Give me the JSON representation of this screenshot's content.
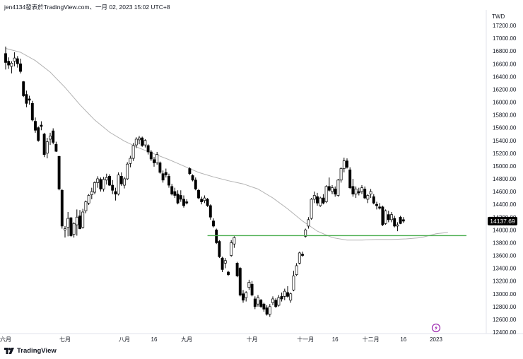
{
  "header": {
    "text": "jen4134發表於TradingView.com、一月 02, 2023 15:02 UTC+8"
  },
  "brand": {
    "name": "TradingView"
  },
  "colors": {
    "up_fill": "#ffffff",
    "down_fill": "#000000",
    "candle_border": "#000000",
    "moving_average": "#b2b2b2",
    "support_line": "#4caf50",
    "price_tag": "#000000",
    "event_marker": "#9c27b0"
  },
  "icons": {
    "logo": "tradingview-logo-icon",
    "event": "lightning-event-icon"
  },
  "chart_data": {
    "type": "candlestick",
    "currency_label": "TWD",
    "ylim": [
      12200,
      17350
    ],
    "y_ticks": [
      12400,
      12600,
      12800,
      13000,
      13200,
      13400,
      13600,
      13800,
      14000,
      14200,
      14400,
      14600,
      14800,
      15000,
      15200,
      15400,
      15600,
      15800,
      16000,
      16200,
      16400,
      16600,
      16800,
      17000,
      17200
    ],
    "x_ticks": [
      {
        "label": "六月",
        "bar": 0
      },
      {
        "label": "七月",
        "bar": 20
      },
      {
        "label": "八月",
        "bar": 40
      },
      {
        "label": "16",
        "bar": 50
      },
      {
        "label": "九月",
        "bar": 61
      },
      {
        "label": "十月",
        "bar": 83
      },
      {
        "label": "十一月",
        "bar": 101
      },
      {
        "label": "16",
        "bar": 111
      },
      {
        "label": "十二月",
        "bar": 123
      },
      {
        "label": "16",
        "bar": 134
      },
      {
        "label": "2023",
        "bar": 145
      }
    ],
    "last_price_label": "14137.69",
    "support_level": 13910,
    "support_from_bar": 68,
    "candles": [
      {
        "o": 16760,
        "h": 16870,
        "l": 16510,
        "c": 16620
      },
      {
        "o": 16640,
        "h": 16700,
        "l": 16520,
        "c": 16580
      },
      {
        "o": 16560,
        "h": 16640,
        "l": 16450,
        "c": 16610
      },
      {
        "o": 16640,
        "h": 16780,
        "l": 16560,
        "c": 16690
      },
      {
        "o": 16680,
        "h": 16720,
        "l": 16540,
        "c": 16600
      },
      {
        "o": 16600,
        "h": 16680,
        "l": 16450,
        "c": 16480
      },
      {
        "o": 16320,
        "h": 16330,
        "l": 16080,
        "c": 16100
      },
      {
        "o": 16120,
        "h": 16180,
        "l": 15920,
        "c": 15980
      },
      {
        "o": 16050,
        "h": 16100,
        "l": 15960,
        "c": 16030
      },
      {
        "o": 15980,
        "h": 16020,
        "l": 15700,
        "c": 15720
      },
      {
        "o": 15700,
        "h": 15760,
        "l": 15520,
        "c": 15560
      },
      {
        "o": 15600,
        "h": 15620,
        "l": 15380,
        "c": 15400
      },
      {
        "o": 15640,
        "h": 15700,
        "l": 15560,
        "c": 15620
      },
      {
        "o": 15500,
        "h": 15520,
        "l": 15140,
        "c": 15180
      },
      {
        "o": 15200,
        "h": 15440,
        "l": 15120,
        "c": 15380
      },
      {
        "o": 15420,
        "h": 15520,
        "l": 15330,
        "c": 15470
      },
      {
        "o": 15550,
        "h": 15590,
        "l": 15340,
        "c": 15370
      },
      {
        "o": 15340,
        "h": 15380,
        "l": 15220,
        "c": 15230
      },
      {
        "o": 15150,
        "h": 15160,
        "l": 14620,
        "c": 14640
      },
      {
        "o": 14620,
        "h": 14640,
        "l": 14020,
        "c": 14060
      },
      {
        "o": 14000,
        "h": 14060,
        "l": 13880,
        "c": 14020
      },
      {
        "o": 14040,
        "h": 14280,
        "l": 13900,
        "c": 14180
      },
      {
        "o": 14190,
        "h": 14200,
        "l": 13890,
        "c": 13910
      },
      {
        "o": 13930,
        "h": 14120,
        "l": 13880,
        "c": 14100
      },
      {
        "o": 14080,
        "h": 14320,
        "l": 13910,
        "c": 14200
      },
      {
        "o": 14220,
        "h": 14310,
        "l": 14010,
        "c": 14020
      },
      {
        "o": 14040,
        "h": 14330,
        "l": 14020,
        "c": 14280
      },
      {
        "o": 14300,
        "h": 14460,
        "l": 14260,
        "c": 14440
      },
      {
        "o": 14420,
        "h": 14560,
        "l": 14390,
        "c": 14540
      },
      {
        "o": 14550,
        "h": 14660,
        "l": 14480,
        "c": 14600
      },
      {
        "o": 14590,
        "h": 14760,
        "l": 14560,
        "c": 14740
      },
      {
        "o": 14740,
        "h": 14840,
        "l": 14660,
        "c": 14800
      },
      {
        "o": 14790,
        "h": 14820,
        "l": 14600,
        "c": 14640
      },
      {
        "o": 14640,
        "h": 14830,
        "l": 14600,
        "c": 14790
      },
      {
        "o": 14780,
        "h": 14880,
        "l": 14710,
        "c": 14820
      },
      {
        "o": 14840,
        "h": 14870,
        "l": 14690,
        "c": 14700
      },
      {
        "o": 14700,
        "h": 14780,
        "l": 14560,
        "c": 14620
      },
      {
        "o": 14600,
        "h": 14660,
        "l": 14460,
        "c": 14560
      },
      {
        "o": 14560,
        "h": 14900,
        "l": 14540,
        "c": 14860
      },
      {
        "o": 14840,
        "h": 14900,
        "l": 14690,
        "c": 14720
      },
      {
        "o": 14700,
        "h": 14830,
        "l": 14650,
        "c": 14800
      },
      {
        "o": 14800,
        "h": 15060,
        "l": 14780,
        "c": 15030
      },
      {
        "o": 15040,
        "h": 15160,
        "l": 14980,
        "c": 15120
      },
      {
        "o": 15120,
        "h": 15360,
        "l": 15080,
        "c": 15320
      },
      {
        "o": 15330,
        "h": 15450,
        "l": 15280,
        "c": 15420
      },
      {
        "o": 15410,
        "h": 15470,
        "l": 15340,
        "c": 15440
      },
      {
        "o": 15440,
        "h": 15460,
        "l": 15300,
        "c": 15320
      },
      {
        "o": 15330,
        "h": 15420,
        "l": 15290,
        "c": 15400
      },
      {
        "o": 15320,
        "h": 15340,
        "l": 15180,
        "c": 15220
      },
      {
        "o": 15220,
        "h": 15250,
        "l": 15080,
        "c": 15110
      },
      {
        "o": 15100,
        "h": 15140,
        "l": 14990,
        "c": 15050
      },
      {
        "o": 15050,
        "h": 15220,
        "l": 15020,
        "c": 15180
      },
      {
        "o": 15050,
        "h": 15070,
        "l": 14880,
        "c": 14900
      },
      {
        "o": 14880,
        "h": 14930,
        "l": 14740,
        "c": 14780
      },
      {
        "o": 14900,
        "h": 14960,
        "l": 14820,
        "c": 14860
      },
      {
        "o": 14840,
        "h": 14880,
        "l": 14660,
        "c": 14700
      },
      {
        "o": 14680,
        "h": 14720,
        "l": 14540,
        "c": 14560
      },
      {
        "o": 14600,
        "h": 14660,
        "l": 14500,
        "c": 14540
      },
      {
        "o": 14560,
        "h": 14620,
        "l": 14400,
        "c": 14420
      },
      {
        "o": 14540,
        "h": 14620,
        "l": 14440,
        "c": 14480
      },
      {
        "o": 14480,
        "h": 14540,
        "l": 14350,
        "c": 14380
      },
      {
        "o": 14440,
        "h": 14480,
        "l": 14400,
        "c": 14420
      },
      {
        "o": 14960,
        "h": 14980,
        "l": 14860,
        "c": 14880
      },
      {
        "o": 14850,
        "h": 14870,
        "l": 14760,
        "c": 14780
      },
      {
        "o": 14780,
        "h": 14820,
        "l": 14620,
        "c": 14640
      },
      {
        "o": 14620,
        "h": 14640,
        "l": 14480,
        "c": 14500
      },
      {
        "o": 14480,
        "h": 14520,
        "l": 14400,
        "c": 14440
      },
      {
        "o": 14460,
        "h": 14540,
        "l": 14420,
        "c": 14500
      },
      {
        "o": 14480,
        "h": 14500,
        "l": 14360,
        "c": 14380
      },
      {
        "o": 14380,
        "h": 14400,
        "l": 14160,
        "c": 14200
      },
      {
        "o": 14140,
        "h": 14180,
        "l": 14040,
        "c": 14060
      },
      {
        "o": 14000,
        "h": 14020,
        "l": 13780,
        "c": 13800
      },
      {
        "o": 13820,
        "h": 13840,
        "l": 13560,
        "c": 13580
      },
      {
        "o": 13560,
        "h": 13580,
        "l": 13340,
        "c": 13380
      },
      {
        "o": 13480,
        "h": 13560,
        "l": 13400,
        "c": 13520
      },
      {
        "o": 13340,
        "h": 13360,
        "l": 13280,
        "c": 13300
      },
      {
        "o": 13600,
        "h": 13840,
        "l": 13580,
        "c": 13800
      },
      {
        "o": 13780,
        "h": 13900,
        "l": 13720,
        "c": 13880
      },
      {
        "o": 13480,
        "h": 13500,
        "l": 13260,
        "c": 13280
      },
      {
        "o": 13400,
        "h": 13420,
        "l": 12960,
        "c": 12980
      },
      {
        "o": 13000,
        "h": 13060,
        "l": 12860,
        "c": 12900
      },
      {
        "o": 12940,
        "h": 13040,
        "l": 12880,
        "c": 13020
      },
      {
        "o": 13100,
        "h": 13220,
        "l": 13060,
        "c": 13180
      },
      {
        "o": 13150,
        "h": 13200,
        "l": 12960,
        "c": 12980
      },
      {
        "o": 12920,
        "h": 12960,
        "l": 12760,
        "c": 12800
      },
      {
        "o": 12840,
        "h": 12980,
        "l": 12800,
        "c": 12940
      },
      {
        "o": 12900,
        "h": 12920,
        "l": 12780,
        "c": 12800
      },
      {
        "o": 12840,
        "h": 12860,
        "l": 12720,
        "c": 12760
      },
      {
        "o": 12780,
        "h": 12820,
        "l": 12660,
        "c": 12680
      },
      {
        "o": 12680,
        "h": 12840,
        "l": 12640,
        "c": 12800
      },
      {
        "o": 12860,
        "h": 12960,
        "l": 12820,
        "c": 12920
      },
      {
        "o": 12900,
        "h": 12930,
        "l": 12780,
        "c": 12800
      },
      {
        "o": 12820,
        "h": 12980,
        "l": 12800,
        "c": 12940
      },
      {
        "o": 12960,
        "h": 13020,
        "l": 12880,
        "c": 12920
      },
      {
        "o": 12960,
        "h": 13080,
        "l": 12900,
        "c": 13040
      },
      {
        "o": 13020,
        "h": 13120,
        "l": 12940,
        "c": 12960
      },
      {
        "o": 12900,
        "h": 13020,
        "l": 12860,
        "c": 13000
      },
      {
        "o": 13060,
        "h": 13360,
        "l": 13040,
        "c": 13280
      },
      {
        "o": 13300,
        "h": 13480,
        "l": 13280,
        "c": 13440
      },
      {
        "o": 13480,
        "h": 13660,
        "l": 13460,
        "c": 13640
      },
      {
        "o": 13620,
        "h": 13660,
        "l": 13580,
        "c": 13600
      },
      {
        "o": 13900,
        "h": 14020,
        "l": 13880,
        "c": 14000
      },
      {
        "o": 14060,
        "h": 14200,
        "l": 14020,
        "c": 14160
      },
      {
        "o": 14180,
        "h": 14500,
        "l": 14160,
        "c": 14480
      },
      {
        "o": 14480,
        "h": 14600,
        "l": 14420,
        "c": 14540
      },
      {
        "o": 14520,
        "h": 14580,
        "l": 14380,
        "c": 14420
      },
      {
        "o": 14380,
        "h": 14520,
        "l": 14360,
        "c": 14500
      },
      {
        "o": 14500,
        "h": 14560,
        "l": 14400,
        "c": 14420
      },
      {
        "o": 14440,
        "h": 14700,
        "l": 14420,
        "c": 14680
      },
      {
        "o": 14680,
        "h": 14820,
        "l": 14600,
        "c": 14620
      },
      {
        "o": 14600,
        "h": 14700,
        "l": 14560,
        "c": 14660
      },
      {
        "o": 14640,
        "h": 14680,
        "l": 14520,
        "c": 14560
      },
      {
        "o": 14540,
        "h": 14800,
        "l": 14520,
        "c": 14780
      },
      {
        "o": 14780,
        "h": 14980,
        "l": 14740,
        "c": 14960
      },
      {
        "o": 14960,
        "h": 15130,
        "l": 14900,
        "c": 15080
      },
      {
        "o": 15080,
        "h": 15120,
        "l": 14960,
        "c": 14980
      },
      {
        "o": 14940,
        "h": 14980,
        "l": 14640,
        "c": 14660
      },
      {
        "o": 14680,
        "h": 14800,
        "l": 14520,
        "c": 14560
      },
      {
        "o": 14560,
        "h": 14680,
        "l": 14500,
        "c": 14640
      },
      {
        "o": 14600,
        "h": 14660,
        "l": 14540,
        "c": 14580
      },
      {
        "o": 14600,
        "h": 14700,
        "l": 14560,
        "c": 14660
      },
      {
        "o": 14640,
        "h": 14680,
        "l": 14480,
        "c": 14500
      },
      {
        "o": 14480,
        "h": 14560,
        "l": 14420,
        "c": 14540
      },
      {
        "o": 14560,
        "h": 14640,
        "l": 14500,
        "c": 14600
      },
      {
        "o": 14520,
        "h": 14560,
        "l": 14400,
        "c": 14420
      },
      {
        "o": 14400,
        "h": 14440,
        "l": 14320,
        "c": 14380
      },
      {
        "o": 14360,
        "h": 14420,
        "l": 14320,
        "c": 14340
      },
      {
        "o": 14360,
        "h": 14380,
        "l": 14060,
        "c": 14080
      },
      {
        "o": 14100,
        "h": 14320,
        "l": 14080,
        "c": 14300
      },
      {
        "o": 14240,
        "h": 14300,
        "l": 14120,
        "c": 14160
      },
      {
        "o": 14160,
        "h": 14280,
        "l": 14120,
        "c": 14240
      },
      {
        "o": 14180,
        "h": 14220,
        "l": 14040,
        "c": 14060
      },
      {
        "o": 14060,
        "h": 14120,
        "l": 13980,
        "c": 14080
      },
      {
        "o": 14200,
        "h": 14220,
        "l": 14090,
        "c": 14100
      },
      {
        "o": 14160,
        "h": 14200,
        "l": 14110,
        "c": 14137.69
      }
    ],
    "moving_average": [
      {
        "bar": 0,
        "v": 16840
      },
      {
        "bar": 5,
        "v": 16780
      },
      {
        "bar": 10,
        "v": 16650
      },
      {
        "bar": 15,
        "v": 16470
      },
      {
        "bar": 20,
        "v": 16230
      },
      {
        "bar": 25,
        "v": 15960
      },
      {
        "bar": 30,
        "v": 15720
      },
      {
        "bar": 35,
        "v": 15530
      },
      {
        "bar": 40,
        "v": 15390
      },
      {
        "bar": 45,
        "v": 15280
      },
      {
        "bar": 50,
        "v": 15190
      },
      {
        "bar": 55,
        "v": 15100
      },
      {
        "bar": 60,
        "v": 15000
      },
      {
        "bar": 65,
        "v": 14900
      },
      {
        "bar": 70,
        "v": 14830
      },
      {
        "bar": 75,
        "v": 14770
      },
      {
        "bar": 80,
        "v": 14720
      },
      {
        "bar": 85,
        "v": 14640
      },
      {
        "bar": 90,
        "v": 14500
      },
      {
        "bar": 95,
        "v": 14330
      },
      {
        "bar": 100,
        "v": 14140
      },
      {
        "bar": 105,
        "v": 13980
      },
      {
        "bar": 110,
        "v": 13880
      },
      {
        "bar": 115,
        "v": 13840
      },
      {
        "bar": 120,
        "v": 13840
      },
      {
        "bar": 125,
        "v": 13850
      },
      {
        "bar": 130,
        "v": 13850
      },
      {
        "bar": 135,
        "v": 13860
      },
      {
        "bar": 140,
        "v": 13880
      },
      {
        "bar": 145,
        "v": 13940
      },
      {
        "bar": 149,
        "v": 13960
      }
    ],
    "event_marker_bar": 145
  }
}
